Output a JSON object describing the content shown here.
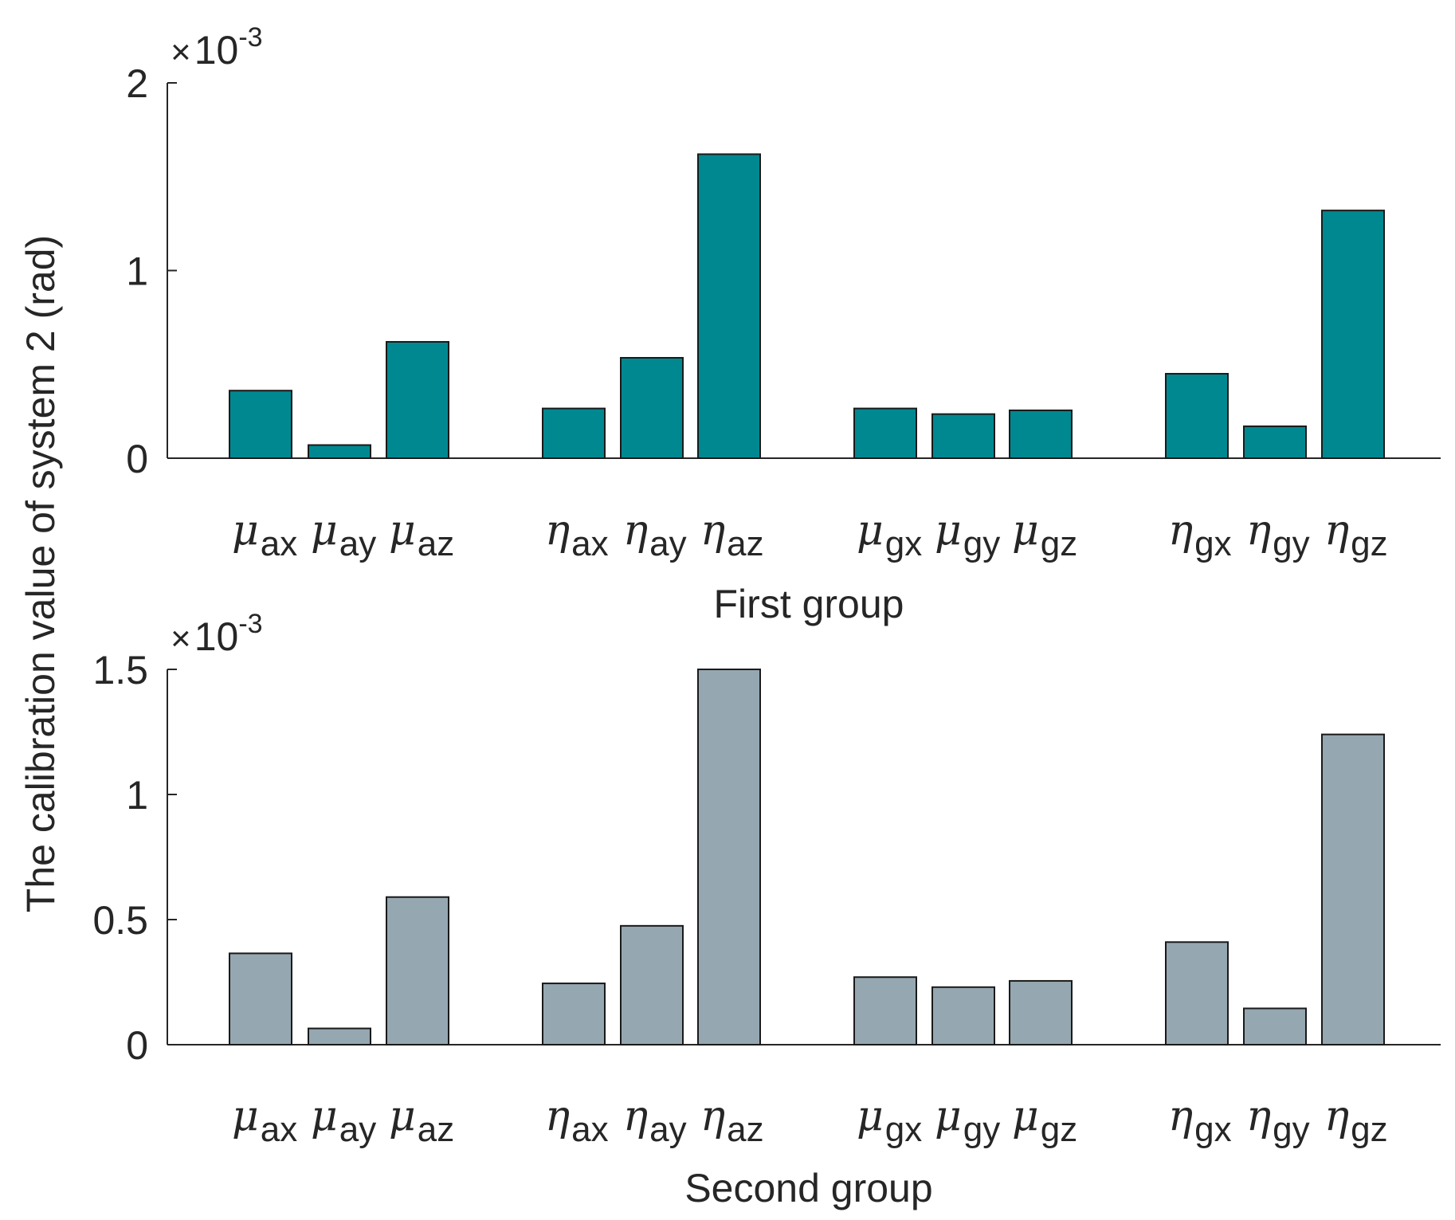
{
  "ylabel": "The calibration value of system 2 (rad)",
  "chart_data": [
    {
      "type": "bar",
      "name": "first-group",
      "xlabel": "First group",
      "exponent_label": "10",
      "exponent_prefix": "×",
      "exponent_power": "-3",
      "ylim": [
        0,
        2
      ],
      "yticks": [
        {
          "value": 0,
          "label": "0"
        },
        {
          "value": 1,
          "label": "1"
        },
        {
          "value": 2,
          "label": "2"
        }
      ],
      "color": "#008891",
      "categories": [
        {
          "greek": "μ",
          "sub": "ax",
          "value": 0.36,
          "group": 0
        },
        {
          "greek": "μ",
          "sub": "ay",
          "value": 0.07,
          "group": 0
        },
        {
          "greek": "μ",
          "sub": "az",
          "value": 0.62,
          "group": 0
        },
        {
          "greek": "η",
          "sub": "ax",
          "value": 0.265,
          "group": 1
        },
        {
          "greek": "η",
          "sub": "ay",
          "value": 0.535,
          "group": 1
        },
        {
          "greek": "η",
          "sub": "az",
          "value": 1.62,
          "group": 1
        },
        {
          "greek": "μ",
          "sub": "gx",
          "value": 0.265,
          "group": 2
        },
        {
          "greek": "μ",
          "sub": "gy",
          "value": 0.235,
          "group": 2
        },
        {
          "greek": "μ",
          "sub": "gz",
          "value": 0.255,
          "group": 2
        },
        {
          "greek": "η",
          "sub": "gx",
          "value": 0.45,
          "group": 3
        },
        {
          "greek": "η",
          "sub": "gy",
          "value": 0.17,
          "group": 3
        },
        {
          "greek": "η",
          "sub": "gz",
          "value": 1.32,
          "group": 3
        }
      ]
    },
    {
      "type": "bar",
      "name": "second-group",
      "xlabel": "Second group",
      "exponent_label": "10",
      "exponent_prefix": "×",
      "exponent_power": "-3",
      "ylim": [
        0,
        1.5
      ],
      "yticks": [
        {
          "value": 0,
          "label": "0"
        },
        {
          "value": 0.5,
          "label": "0.5"
        },
        {
          "value": 1,
          "label": "1"
        },
        {
          "value": 1.5,
          "label": "1.5"
        }
      ],
      "color": "#95a7b1",
      "categories": [
        {
          "greek": "μ",
          "sub": "ax",
          "value": 0.365,
          "group": 0
        },
        {
          "greek": "μ",
          "sub": "ay",
          "value": 0.065,
          "group": 0
        },
        {
          "greek": "μ",
          "sub": "az",
          "value": 0.59,
          "group": 0
        },
        {
          "greek": "η",
          "sub": "ax",
          "value": 0.245,
          "group": 1
        },
        {
          "greek": "η",
          "sub": "ay",
          "value": 0.475,
          "group": 1
        },
        {
          "greek": "η",
          "sub": "az",
          "value": 1.5,
          "group": 1
        },
        {
          "greek": "μ",
          "sub": "gx",
          "value": 0.27,
          "group": 2
        },
        {
          "greek": "μ",
          "sub": "gy",
          "value": 0.23,
          "group": 2
        },
        {
          "greek": "μ",
          "sub": "gz",
          "value": 0.255,
          "group": 2
        },
        {
          "greek": "η",
          "sub": "gx",
          "value": 0.41,
          "group": 3
        },
        {
          "greek": "η",
          "sub": "gy",
          "value": 0.145,
          "group": 3
        },
        {
          "greek": "η",
          "sub": "gz",
          "value": 1.24,
          "group": 3
        }
      ]
    }
  ]
}
